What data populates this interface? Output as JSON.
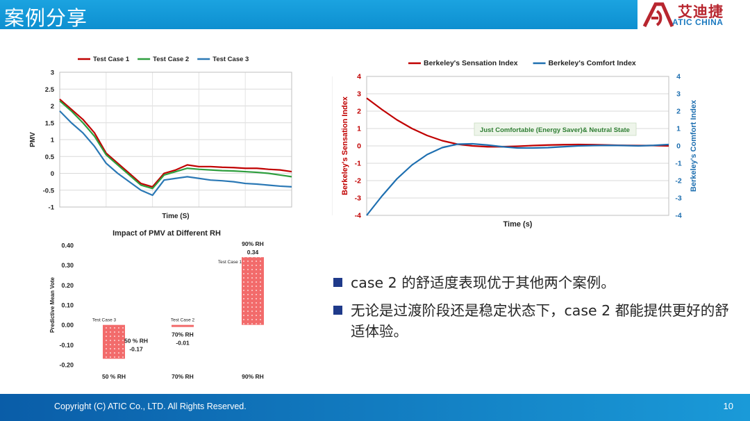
{
  "header": {
    "title": "案例分享"
  },
  "logo": {
    "cn": "艾迪捷",
    "en": "ATIC CHINA"
  },
  "footer": {
    "copyright": "Copyright (C) ATIC Co., LTD. All Rights Reserved.",
    "page_number": "10"
  },
  "bullets": [
    "case 2 的舒适度表现优于其他两个案例。",
    "无论是过渡阶段还是稳定状态下，case 2 都能提供更好的舒适体验。"
  ],
  "chart_data": [
    {
      "type": "line",
      "xlabel": "Time (S)",
      "ylabel": "PMV",
      "ylim": [
        -1,
        3
      ],
      "yticks": [
        "3",
        "2.5",
        "2",
        "1.5",
        "1",
        "0.5",
        "0",
        "-0.5",
        "-1"
      ],
      "grid": true,
      "legend": "top",
      "x": [
        0,
        5,
        10,
        15,
        20,
        25,
        30,
        35,
        40,
        45,
        50,
        55,
        60,
        65,
        70,
        75,
        80,
        85,
        90,
        95,
        100
      ],
      "series": [
        {
          "name": "Test Case 1",
          "color": "#c00000",
          "values": [
            2.2,
            1.9,
            1.6,
            1.2,
            0.6,
            0.3,
            0.0,
            -0.3,
            -0.4,
            0.0,
            0.1,
            0.25,
            0.2,
            0.2,
            0.18,
            0.17,
            0.15,
            0.15,
            0.12,
            0.1,
            0.05
          ]
        },
        {
          "name": "Test Case 2",
          "color": "#2e9e3e",
          "values": [
            2.15,
            1.85,
            1.5,
            1.1,
            0.55,
            0.25,
            -0.05,
            -0.35,
            -0.45,
            -0.05,
            0.05,
            0.15,
            0.12,
            0.1,
            0.08,
            0.07,
            0.05,
            0.03,
            0.0,
            -0.05,
            -0.1
          ]
        },
        {
          "name": "Test Case 3",
          "color": "#2a78b5",
          "values": [
            1.85,
            1.5,
            1.2,
            0.8,
            0.3,
            0.0,
            -0.25,
            -0.5,
            -0.65,
            -0.2,
            -0.15,
            -0.1,
            -0.15,
            -0.2,
            -0.22,
            -0.25,
            -0.3,
            -0.32,
            -0.35,
            -0.38,
            -0.4
          ]
        }
      ]
    },
    {
      "type": "line",
      "xlabel": "Time (s)",
      "ylabel": "Berkeley's  Sensation  Index",
      "ylabel_right": "Berkeley's  Comfort  Index",
      "ylim": [
        -4,
        4
      ],
      "yticks": [
        "4",
        "3",
        "2",
        "1",
        "0",
        "-1",
        "-2",
        "-3",
        "-4"
      ],
      "grid": true,
      "legend": "top",
      "annotation": "Just Comfortable (Energy Saver)& Neutral State",
      "x": [
        0,
        5,
        10,
        15,
        20,
        25,
        30,
        35,
        40,
        45,
        50,
        55,
        60,
        65,
        70,
        75,
        80,
        85,
        90,
        95,
        100
      ],
      "series": [
        {
          "name": "Berkeley's  Sensation  Index",
          "color": "#c00000",
          "values": [
            2.75,
            2.1,
            1.5,
            1.0,
            0.6,
            0.3,
            0.1,
            0.0,
            -0.05,
            -0.05,
            -0.02,
            0.02,
            0.05,
            0.07,
            0.08,
            0.07,
            0.05,
            0.03,
            0.02,
            0.02,
            0.0
          ]
        },
        {
          "name": "Berkeley's  Comfort  Index",
          "color": "#1e6fb0",
          "values": [
            -4.0,
            -2.9,
            -1.9,
            -1.1,
            -0.5,
            -0.1,
            0.1,
            0.12,
            0.05,
            -0.05,
            -0.12,
            -0.12,
            -0.1,
            -0.05,
            0.0,
            0.02,
            0.03,
            0.02,
            0.0,
            0.03,
            0.08
          ]
        }
      ]
    },
    {
      "type": "bar",
      "title": "Impact of PMV at Different RH",
      "ylabel": "Predictive Mean Vote",
      "ylim": [
        -0.2,
        0.4
      ],
      "yticks": [
        "0.40",
        "0.30",
        "0.20",
        "0.10",
        "0.00",
        "-0.10",
        "-0.20"
      ],
      "categories": [
        "50 % RH",
        "70% RH",
        "90% RH"
      ],
      "series": [
        {
          "name": "",
          "values": [
            -0.17,
            -0.01,
            0.34
          ]
        }
      ],
      "bar_labels": [
        {
          "case": "Test Case 3",
          "rh": "50 % RH",
          "value": "-0.17"
        },
        {
          "case": "Test Case 2",
          "rh": "70% RH",
          "value": "-0.01"
        },
        {
          "case": "Test Case 1",
          "rh": "90% RH",
          "value": "0.34"
        }
      ]
    }
  ]
}
